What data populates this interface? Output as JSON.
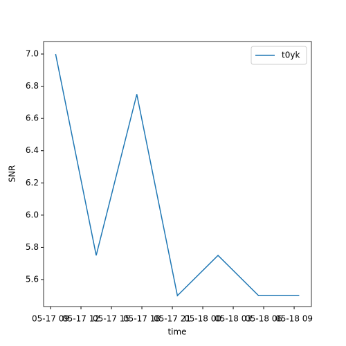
{
  "chart_data": {
    "type": "line",
    "x": [
      "05-17 09:30",
      "05-17 13:30",
      "05-17 17:30",
      "05-17 21:30",
      "05-18 01:30",
      "05-18 05:30",
      "05-18 09:30"
    ],
    "series": [
      {
        "name": "t0yk",
        "color": "#1f77b4",
        "values": [
          7.0,
          5.75,
          6.75,
          5.5,
          5.75,
          5.5,
          5.5
        ]
      }
    ],
    "xlabel": "time",
    "ylabel": "SNR",
    "xlim": [
      "05-17 08:19",
      "05-18 10:42"
    ],
    "xticks": [
      "05-17 09",
      "05-17 12",
      "05-17 15",
      "05-17 18",
      "05-17 21",
      "05-18 00",
      "05-18 03",
      "05-18 06",
      "05-18 09"
    ],
    "ylim": [
      5.4325,
      7.0775
    ],
    "yticks": [
      5.6,
      5.8,
      {
        "value": 6,
        "label": "6.0"
      },
      6.2,
      6.4,
      6.6,
      6.8,
      {
        "value": 7,
        "label": "7.0"
      }
    ],
    "legend": "upper right",
    "grid": false
  }
}
